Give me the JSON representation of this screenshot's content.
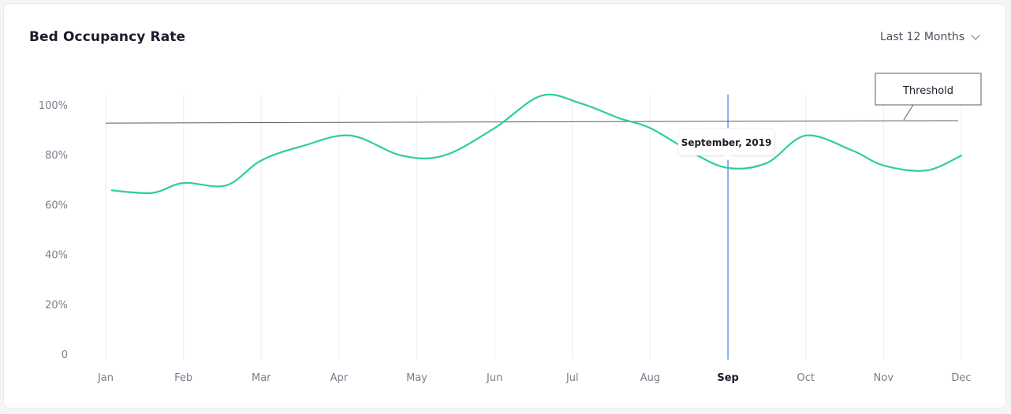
{
  "card": {
    "title": "Bed Occupancy Rate",
    "range_label": "Last 12 Months"
  },
  "chart_data": {
    "type": "line",
    "categories": [
      "Jan",
      "Feb",
      "Mar",
      "Apr",
      "May",
      "Jun",
      "Jul",
      "Aug",
      "Sep",
      "Oct",
      "Nov",
      "Dec"
    ],
    "y_ticks": [
      "0",
      "20%",
      "40%",
      "60%",
      "80%",
      "100%"
    ],
    "ylim": [
      0,
      100
    ],
    "grid": "vertical",
    "series": [
      {
        "color": "#2ecf9a",
        "points": [
          {
            "x": 0.08,
            "y": 66
          },
          {
            "x": 0.6,
            "y": 65
          },
          {
            "x": 1.0,
            "y": 69
          },
          {
            "x": 1.55,
            "y": 68
          },
          {
            "x": 2.0,
            "y": 78
          },
          {
            "x": 2.55,
            "y": 84
          },
          {
            "x": 3.15,
            "y": 88
          },
          {
            "x": 3.8,
            "y": 80
          },
          {
            "x": 4.35,
            "y": 80
          },
          {
            "x": 5.0,
            "y": 91
          },
          {
            "x": 5.6,
            "y": 104
          },
          {
            "x": 6.1,
            "y": 101
          },
          {
            "x": 6.6,
            "y": 95
          },
          {
            "x": 7.0,
            "y": 91
          },
          {
            "x": 7.55,
            "y": 81
          },
          {
            "x": 8.0,
            "y": 75
          },
          {
            "x": 8.5,
            "y": 77
          },
          {
            "x": 9.0,
            "y": 88
          },
          {
            "x": 9.6,
            "y": 82
          },
          {
            "x": 10.0,
            "y": 76
          },
          {
            "x": 10.55,
            "y": 74
          },
          {
            "x": 11.0,
            "y": 80
          }
        ]
      }
    ],
    "threshold": {
      "label": "Threshold",
      "y_start": 93,
      "y_end": 94,
      "color": "#5a5c66"
    },
    "highlight": {
      "category": "Sep",
      "label": "September, 2019",
      "color": "#6a9be6"
    }
  }
}
